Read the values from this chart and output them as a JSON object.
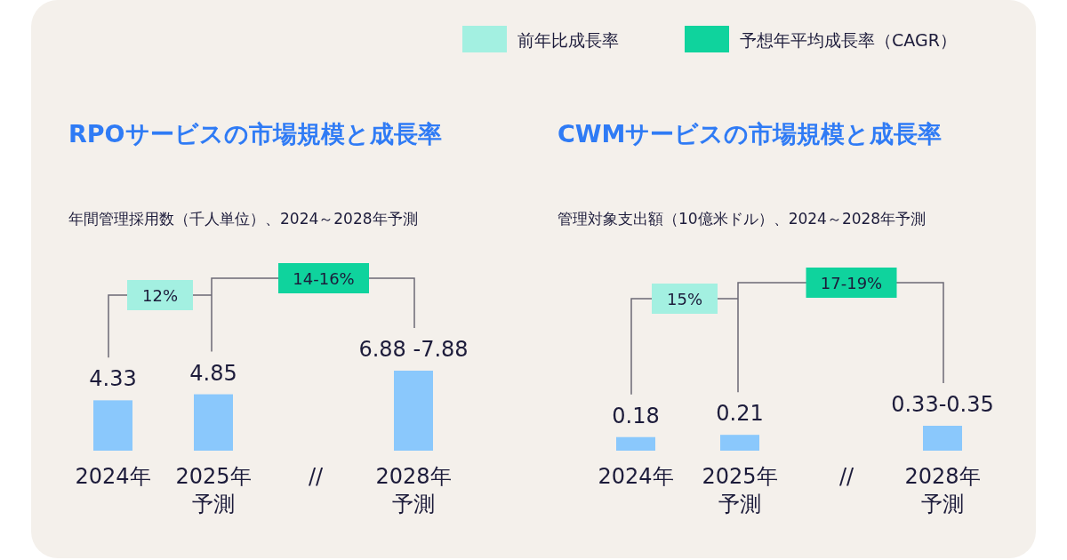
{
  "chart_data": [
    {
      "type": "bar",
      "title": "RPOサービスの市場規模と成長率",
      "subtitle": "年間管理採用数（千人単位）、2024～2028年予測",
      "categories": [
        "2024年",
        "2025年予測",
        "2028年予測"
      ],
      "values": [
        4.33,
        4.85,
        6.88
      ],
      "value_labels": [
        "4.33",
        "4.85",
        "6.88 -7.88"
      ],
      "color": "#8ac8fc",
      "annotations": [
        "12%",
        "14-16%",
        "//",
        "前年比成長率",
        "予想年平均成長率（CAGR）"
      ]
    },
    {
      "type": "bar",
      "title": "CWMサービスの市場規模と成長率",
      "subtitle": "管理対象支出額（10億米ドル）、2024～2028年予測",
      "categories": [
        "2024年",
        "2025年予測",
        "2028年予測"
      ],
      "values": [
        0.18,
        0.21,
        0.33
      ],
      "value_labels": [
        "0.18",
        "0.21",
        "0.33-0.35"
      ],
      "color": "#8ac8fc",
      "annotations": [
        "15%",
        "17-19%",
        "//"
      ]
    }
  ]
}
